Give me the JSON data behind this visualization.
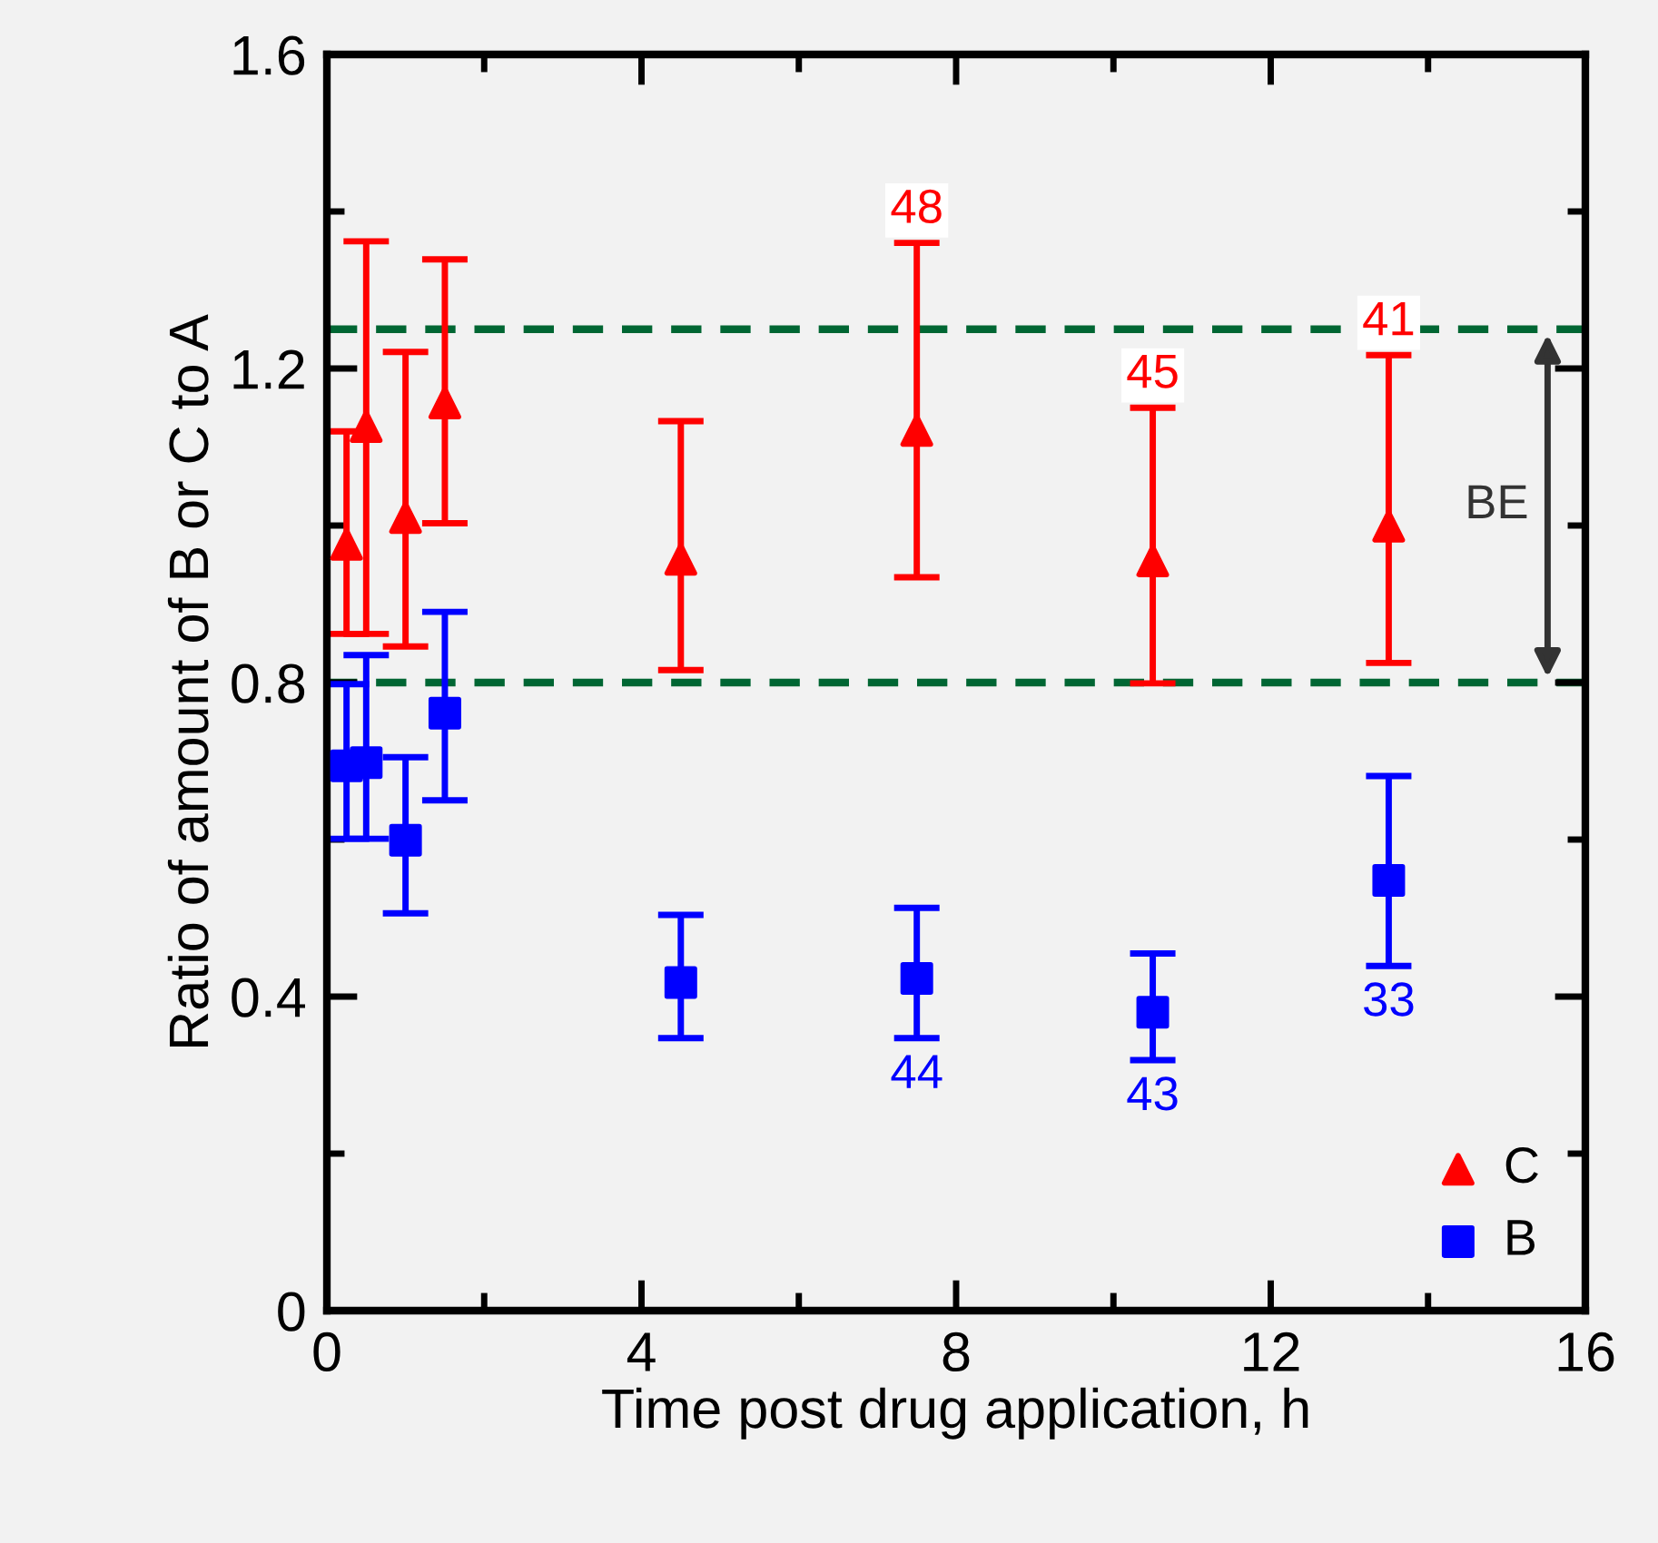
{
  "chart_data": {
    "type": "scatter",
    "xlabel": "Time post drug application, h",
    "ylabel": "Ratio of amount of B or C to A",
    "xlim": [
      0,
      16
    ],
    "xticks": [
      0,
      4,
      8,
      12,
      16
    ],
    "ylim": [
      0,
      1.6
    ],
    "yticks": [
      0,
      0.4,
      0.8,
      1.2,
      1.6
    ],
    "x": [
      0.25,
      0.5,
      1.0,
      1.5,
      4.5,
      7.5,
      10.5,
      13.5
    ],
    "series": [
      {
        "name": "C",
        "color": "#ff0000",
        "marker": "triangle",
        "values": [
          0.976,
          1.126,
          1.01,
          1.156,
          0.957,
          1.121,
          0.955,
          0.999
        ],
        "errors": [
          [
            0.862,
            1.12
          ],
          [
            0.862,
            1.362
          ],
          [
            0.846,
            1.221
          ],
          [
            1.003,
            1.339
          ],
          [
            0.816,
            1.133
          ],
          [
            0.934,
            1.36
          ],
          [
            0.799,
            1.15
          ],
          [
            0.825,
            1.217
          ]
        ]
      },
      {
        "name": "B",
        "color": "#0000ff",
        "marker": "square",
        "values": [
          0.694,
          0.698,
          0.599,
          0.761,
          0.418,
          0.423,
          0.38,
          0.548
        ],
        "errors": [
          [
            0.601,
            0.798
          ],
          [
            0.601,
            0.835
          ],
          [
            0.506,
            0.705
          ],
          [
            0.65,
            0.89
          ],
          [
            0.347,
            0.504
          ],
          [
            0.347,
            0.513
          ],
          [
            0.319,
            0.455
          ],
          [
            0.439,
            0.681
          ]
        ]
      }
    ],
    "ref_lines": [
      {
        "axis": "y",
        "value": 1.25,
        "color": "#006633",
        "line_style": "dashed"
      },
      {
        "axis": "y",
        "value": 0.8,
        "color": "#006633",
        "line_style": "dashed"
      }
    ],
    "annotations": [
      "BE",
      {
        "text": "48",
        "x": 7.5,
        "y": 1.36
      },
      {
        "text": "45",
        "x": 10.5,
        "y": 1.15
      },
      {
        "text": "41",
        "x": 13.5,
        "y": 1.217
      },
      {
        "text": "44",
        "x": 7.5,
        "y": 0.347
      },
      {
        "text": "43",
        "x": 10.5,
        "y": 0.319
      },
      {
        "text": "33",
        "x": 13.5,
        "y": 0.439
      }
    ],
    "legend": "bottom right",
    "grid": false
  }
}
